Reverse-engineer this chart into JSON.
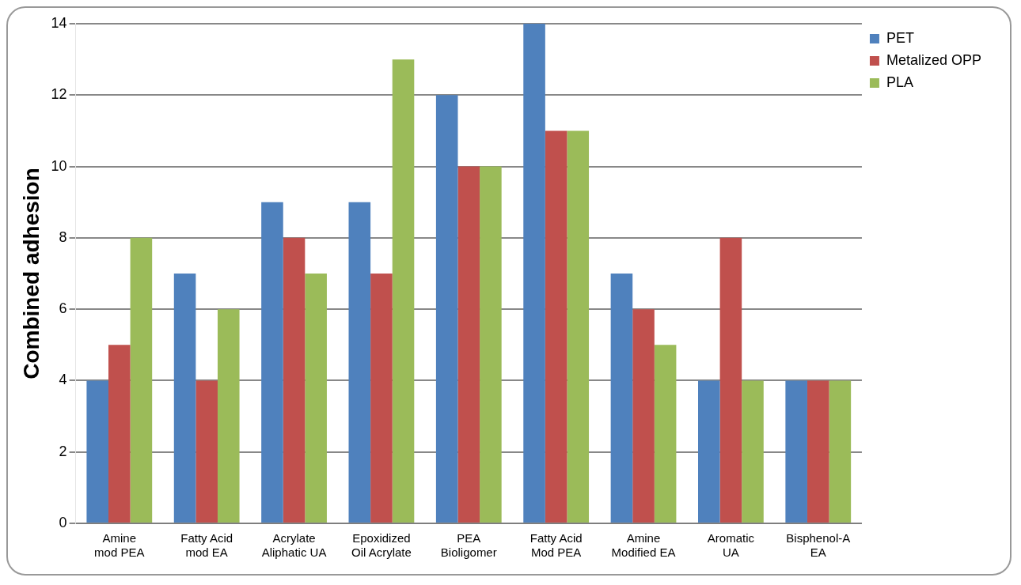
{
  "chart_data": {
    "type": "bar",
    "ylabel": "Combined adhesion",
    "categories": [
      "Amine mod PEA",
      "Fatty Acid mod EA",
      "Acrylate Aliphatic UA",
      "Epoxidized Oil Acrylate",
      "PEA Bioligomer",
      "Fatty Acid Mod PEA",
      "Amine Modified EA",
      "Aromatic UA",
      "Bisphenol-A EA"
    ],
    "series": [
      {
        "name": "PET",
        "color": "#4f81bd",
        "values": [
          4,
          7,
          9,
          9,
          12,
          14,
          7,
          4,
          4
        ]
      },
      {
        "name": "Metalized OPP",
        "color": "#c0504d",
        "values": [
          5,
          4,
          8,
          7,
          10,
          11,
          6,
          8,
          4
        ]
      },
      {
        "name": "PLA",
        "color": "#9bbb59",
        "values": [
          8,
          6,
          7,
          13,
          10,
          11,
          5,
          4,
          4
        ]
      }
    ],
    "ylim": [
      0,
      14
    ],
    "yticks": [
      0,
      2,
      4,
      6,
      8,
      10,
      12,
      14
    ],
    "grid": "y",
    "legend": "top right"
  }
}
